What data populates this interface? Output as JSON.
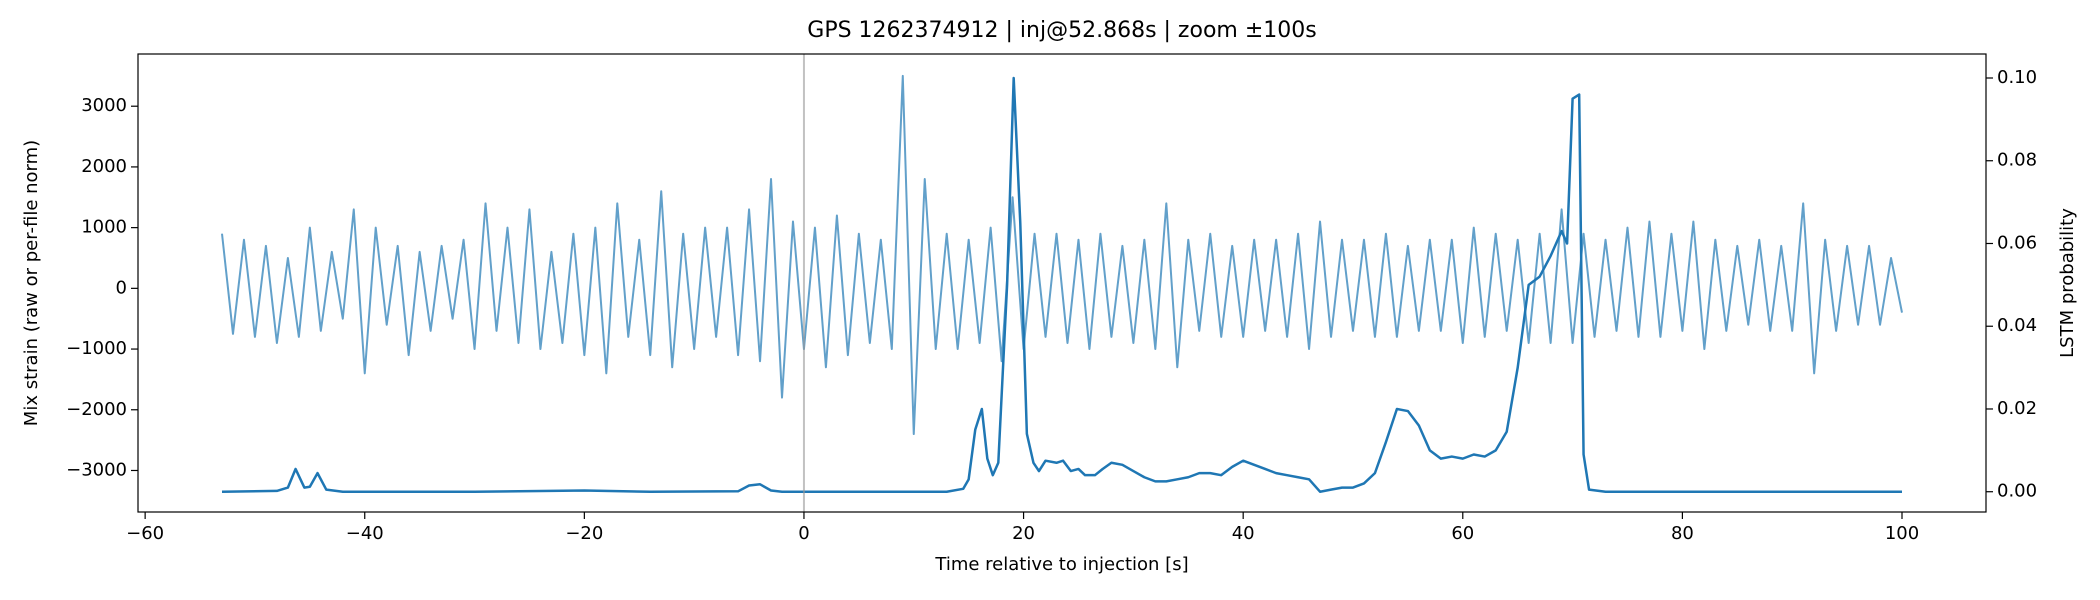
{
  "chart_data": {
    "type": "line",
    "title": "GPS 1262374912 | inj@52.868s | zoom ±100s",
    "x_label": "Time relative to injection [s]",
    "y_label": "Mix strain (raw or per-file norm)",
    "y2_label": "LSTM probability",
    "xlim": [
      -60.65,
      107.65
    ],
    "ylim": [
      -3684,
      3860
    ],
    "y2lim": [
      -0.0049,
      0.1058
    ],
    "xticks": [
      {
        "value": -60,
        "label": "−60"
      },
      {
        "value": -40,
        "label": "−40"
      },
      {
        "value": -20,
        "label": "−20"
      },
      0,
      20,
      40,
      60,
      80,
      100
    ],
    "yticks": [
      {
        "value": -3000,
        "label": "−3000"
      },
      {
        "value": -2000,
        "label": "−2000"
      },
      {
        "value": -1000,
        "label": "−1000"
      },
      0,
      1000,
      2000,
      3000
    ],
    "y2ticks": [
      {
        "value": 0,
        "label": "0.00"
      },
      {
        "value": 0.02,
        "label": "0.02"
      },
      {
        "value": 0.04,
        "label": "0.04"
      },
      {
        "value": 0.06,
        "label": "0.06"
      },
      {
        "value": 0.08,
        "label": "0.08"
      },
      {
        "value": 0.1,
        "label": "0.10"
      }
    ],
    "grid": false,
    "vlines": [
      0
    ],
    "vline_color": "#999999",
    "series": [
      {
        "color": "#1f77b4",
        "opacity": 0.7,
        "x": [
          -53,
          -52,
          -51,
          -50,
          -49,
          -48,
          -47,
          -46,
          -45,
          -44,
          -43,
          -42,
          -41,
          -40,
          -39,
          -38,
          -37,
          -36,
          -35,
          -34,
          -33,
          -32,
          -31,
          -30,
          -29,
          -28,
          -27,
          -26,
          -25,
          -24,
          -23,
          -22,
          -21,
          -20,
          -19,
          -18,
          -17,
          -16,
          -15,
          -14,
          -13,
          -12,
          -11,
          -10,
          -9,
          -8,
          -7,
          -6,
          -5,
          -4,
          -3,
          -2,
          -1,
          0,
          1,
          2,
          3,
          4,
          5,
          6,
          7,
          8,
          9,
          10,
          11,
          12,
          13,
          14,
          15,
          16,
          17,
          18,
          19,
          20,
          21,
          22,
          23,
          24,
          25,
          26,
          27,
          28,
          29,
          30,
          31,
          32,
          33,
          34,
          35,
          36,
          37,
          38,
          39,
          40,
          41,
          42,
          43,
          44,
          45,
          46,
          47,
          48,
          49,
          50,
          51,
          52,
          53,
          54,
          55,
          56,
          57,
          58,
          59,
          60,
          61,
          62,
          63,
          64,
          65,
          66,
          67,
          68,
          69,
          70,
          71,
          72,
          73,
          74,
          75,
          76,
          77,
          78,
          79,
          80,
          81,
          82,
          83,
          84,
          85,
          86,
          87,
          88,
          89,
          90,
          91,
          92,
          93,
          94,
          95,
          96,
          97,
          98,
          99,
          100
        ],
        "values": [
          900,
          -750,
          800,
          -800,
          700,
          -900,
          500,
          -800,
          1000,
          -700,
          600,
          -500,
          1300,
          -1400,
          1000,
          -600,
          700,
          -1100,
          600,
          -700,
          700,
          -500,
          800,
          -1000,
          1400,
          -700,
          1000,
          -900,
          1300,
          -1000,
          600,
          -900,
          900,
          -1100,
          1000,
          -1400,
          1400,
          -800,
          800,
          -1100,
          1600,
          -1300,
          900,
          -1000,
          1000,
          -800,
          1000,
          -1100,
          1300,
          -1200,
          1800,
          -1800,
          1100,
          -1000,
          1000,
          -1300,
          1200,
          -1100,
          900,
          -900,
          800,
          -1000,
          3500,
          -2400,
          1800,
          -1000,
          900,
          -1000,
          800,
          -900,
          1000,
          -1200,
          1500,
          -1000,
          900,
          -800,
          900,
          -900,
          800,
          -1000,
          900,
          -800,
          700,
          -900,
          800,
          -1000,
          1400,
          -1300,
          800,
          -700,
          900,
          -800,
          700,
          -800,
          800,
          -700,
          800,
          -800,
          900,
          -1000,
          1100,
          -800,
          800,
          -700,
          800,
          -800,
          900,
          -800,
          700,
          -700,
          800,
          -700,
          800,
          -900,
          1000,
          -800,
          900,
          -700,
          800,
          -900,
          900,
          -900,
          1300,
          -900,
          900,
          -800,
          800,
          -700,
          1000,
          -800,
          1100,
          -800,
          900,
          -700,
          1100,
          -1000,
          800,
          -700,
          700,
          -600,
          800,
          -700,
          700,
          -700,
          1400,
          -1400,
          800,
          -700,
          700,
          -600,
          700,
          -600,
          500,
          -400
        ]
      },
      {
        "color": "#1f77b4",
        "axis": "y2",
        "x": [
          -53,
          -48,
          -47,
          -46.3,
          -45.5,
          -45,
          -44.3,
          -43.5,
          -42,
          -30,
          -20,
          -14,
          -6,
          -5,
          -4,
          -3,
          -2,
          9.8,
          13,
          14.5,
          15,
          15.6,
          16.2,
          16.7,
          17.2,
          17.7,
          18.5,
          19.1,
          19.7,
          20.3,
          20.9,
          21.4,
          22,
          23,
          23.6,
          24.3,
          25,
          25.6,
          26.5,
          27.2,
          28,
          29,
          30,
          31,
          32,
          33,
          34,
          35,
          36,
          37,
          38,
          39,
          40,
          41,
          42,
          43,
          44,
          45,
          46,
          47,
          48,
          49,
          50,
          51,
          52,
          53,
          54,
          55,
          56,
          57,
          58,
          59,
          60,
          61,
          62,
          63,
          64,
          65,
          66,
          67,
          68,
          69,
          69.5,
          70,
          70.6,
          71,
          71.5,
          73,
          100
        ],
        "values": [
          0,
          0.0002,
          0.001,
          0.0055,
          0.001,
          0.0012,
          0.0045,
          0.0005,
          0,
          0,
          0.0003,
          0,
          0.0001,
          0.0015,
          0.0018,
          0.0003,
          0,
          0,
          0,
          0.0007,
          0.003,
          0.015,
          0.02,
          0.008,
          0.004,
          0.007,
          0.05,
          0.1,
          0.065,
          0.014,
          0.007,
          0.005,
          0.0075,
          0.007,
          0.0075,
          0.005,
          0.0055,
          0.004,
          0.004,
          0.0055,
          0.007,
          0.0065,
          0.005,
          0.0035,
          0.0025,
          0.0025,
          0.003,
          0.0035,
          0.0045,
          0.0045,
          0.004,
          0.006,
          0.0075,
          0.0065,
          0.0055,
          0.0045,
          0.004,
          0.0035,
          0.003,
          0,
          0.0005,
          0.001,
          0.001,
          0.002,
          0.0045,
          0.012,
          0.02,
          0.0195,
          0.016,
          0.01,
          0.008,
          0.0085,
          0.008,
          0.009,
          0.0085,
          0.01,
          0.0145,
          0.03,
          0.05,
          0.052,
          0.057,
          0.063,
          0.06,
          0.095,
          0.096,
          0.009,
          0.0005,
          0,
          0
        ]
      }
    ]
  }
}
